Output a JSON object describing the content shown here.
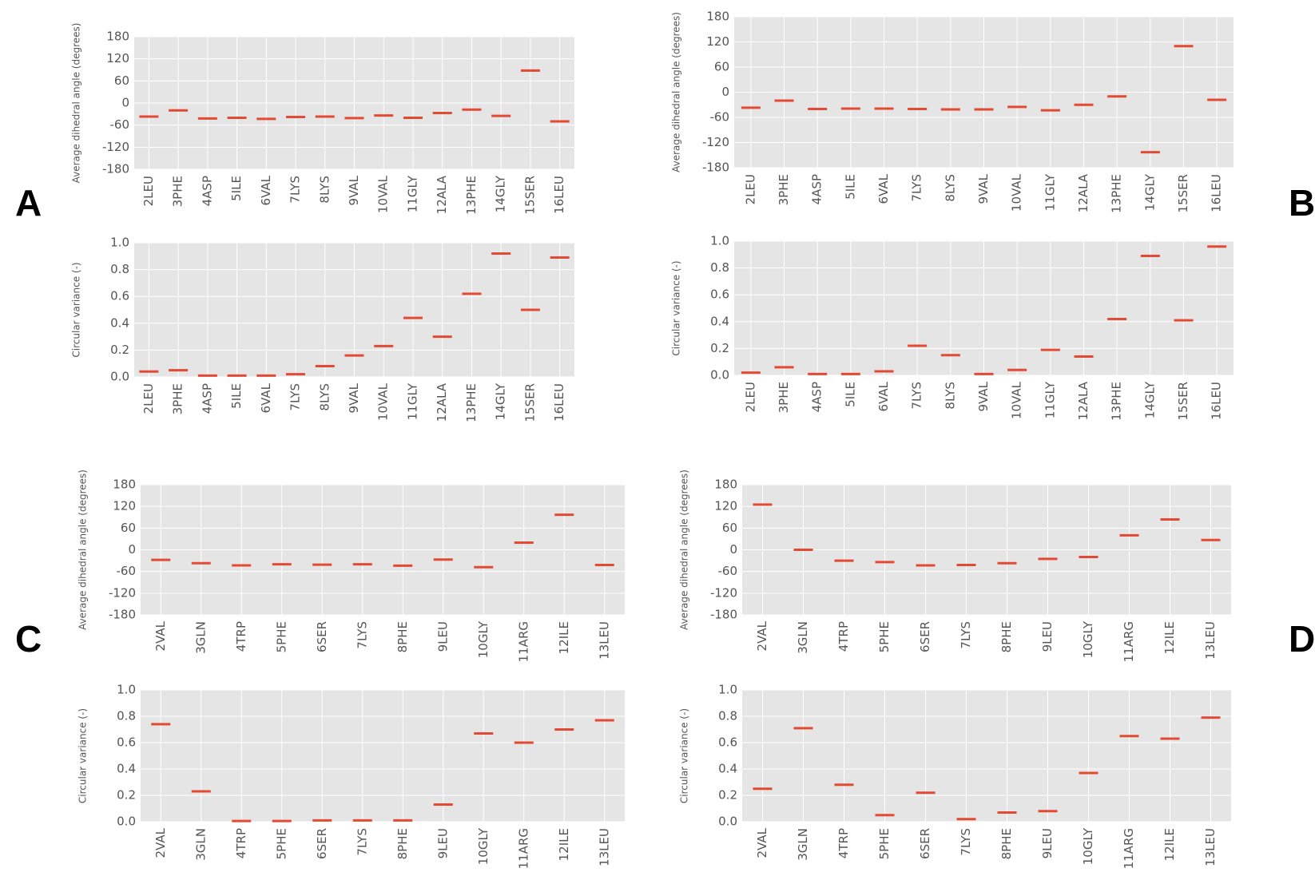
{
  "panel_labels": [
    "A",
    "B",
    "C",
    "D"
  ],
  "chart_data": [
    {
      "type": "scatter",
      "ylabel": "Average dihedral angle (degrees)",
      "color": "#e24a33",
      "grid": true,
      "categories": [
        "2LEU",
        "3PHE",
        "4ASP",
        "5ILE",
        "6VAL",
        "7LYS",
        "8LYS",
        "9VAL",
        "10VAL",
        "11GLY",
        "12ALA",
        "13PHE",
        "14GLY",
        "15SER",
        "16LEU"
      ],
      "values": [
        -37,
        -20,
        -42,
        -40,
        -43,
        -38,
        -37,
        -41,
        -34,
        -40,
        -27,
        -18,
        -35,
        88,
        -50
      ],
      "ylim": [
        -180,
        180
      ],
      "yticks": [
        -180,
        -120,
        -60,
        0,
        60,
        120,
        180
      ]
    },
    {
      "type": "scatter",
      "ylabel": "Circular variance (-)",
      "color": "#e24a33",
      "grid": true,
      "categories": [
        "2LEU",
        "3PHE",
        "4ASP",
        "5ILE",
        "6VAL",
        "7LYS",
        "8LYS",
        "9VAL",
        "10VAL",
        "11GLY",
        "12ALA",
        "13PHE",
        "14GLY",
        "15SER",
        "16LEU"
      ],
      "values": [
        0.04,
        0.05,
        0.01,
        0.01,
        0.01,
        0.02,
        0.08,
        0.16,
        0.23,
        0.44,
        0.3,
        0.62,
        0.92,
        0.5,
        0.89
      ],
      "ylim": [
        0,
        1
      ],
      "yticks": [
        {
          "value": 0,
          "label": "0.0"
        },
        0.2,
        0.4,
        0.6,
        0.8,
        {
          "value": 1,
          "label": "1.0"
        }
      ]
    },
    {
      "type": "scatter",
      "ylabel": "Average dihedral angle (degrees)",
      "color": "#e24a33",
      "grid": true,
      "categories": [
        "2LEU",
        "3PHE",
        "4ASP",
        "5ILE",
        "6VAL",
        "7LYS",
        "8LYS",
        "9VAL",
        "10VAL",
        "11GLY",
        "12ALA",
        "13PHE",
        "14GLY",
        "15SER",
        "16LEU"
      ],
      "values": [
        -37,
        -20,
        -40,
        -39,
        -39,
        -40,
        -41,
        -41,
        -35,
        -43,
        -30,
        -10,
        -143,
        110,
        -18
      ],
      "ylim": [
        -180,
        180
      ],
      "yticks": [
        -180,
        -120,
        -60,
        0,
        60,
        120,
        180
      ]
    },
    {
      "type": "scatter",
      "ylabel": "Circular variance (-)",
      "color": "#e24a33",
      "grid": true,
      "categories": [
        "2LEU",
        "3PHE",
        "4ASP",
        "5ILE",
        "6VAL",
        "7LYS",
        "8LYS",
        "9VAL",
        "10VAL",
        "11GLY",
        "12ALA",
        "13PHE",
        "14GLY",
        "15SER",
        "16LEU"
      ],
      "values": [
        0.02,
        0.06,
        0.01,
        0.01,
        0.03,
        0.22,
        0.15,
        0.01,
        0.04,
        0.19,
        0.14,
        0.42,
        0.89,
        0.41,
        0.96
      ],
      "ylim": [
        0,
        1
      ],
      "yticks": [
        {
          "value": 0,
          "label": "0.0"
        },
        0.2,
        0.4,
        0.6,
        0.8,
        {
          "value": 1,
          "label": "1.0"
        }
      ]
    },
    {
      "type": "scatter",
      "ylabel": "Average dihedral angle (degrees)",
      "color": "#e24a33",
      "grid": true,
      "categories": [
        "2VAL",
        "3GLN",
        "4TRP",
        "5PHE",
        "6SER",
        "7LYS",
        "8PHE",
        "9LEU",
        "10GLY",
        "11ARG",
        "12ILE",
        "13LEU"
      ],
      "values": [
        -28,
        -37,
        -43,
        -40,
        -41,
        -40,
        -44,
        -27,
        -48,
        20,
        97,
        -42
      ],
      "ylim": [
        -180,
        180
      ],
      "yticks": [
        -180,
        -120,
        -60,
        0,
        60,
        120,
        180
      ]
    },
    {
      "type": "scatter",
      "ylabel": "Circular variance (-)",
      "color": "#e24a33",
      "grid": true,
      "categories": [
        "2VAL",
        "3GLN",
        "4TRP",
        "5PHE",
        "6SER",
        "7LYS",
        "8PHE",
        "9LEU",
        "10GLY",
        "11ARG",
        "12ILE",
        "13LEU"
      ],
      "values": [
        0.74,
        0.23,
        0.005,
        0.005,
        0.01,
        0.01,
        0.01,
        0.13,
        0.67,
        0.6,
        0.7,
        0.77
      ],
      "ylim": [
        0,
        1
      ],
      "yticks": [
        {
          "value": 0,
          "label": "0.0"
        },
        0.2,
        0.4,
        0.6,
        0.8,
        {
          "value": 1,
          "label": "1.0"
        }
      ]
    },
    {
      "type": "scatter",
      "ylabel": "Average dihedral angle (degrees)",
      "color": "#e24a33",
      "grid": true,
      "categories": [
        "2VAL",
        "3GLN",
        "4TRP",
        "5PHE",
        "6SER",
        "7LYS",
        "8PHE",
        "9LEU",
        "10GLY",
        "11ARG",
        "12ILE",
        "13LEU"
      ],
      "values": [
        125,
        0,
        -30,
        -34,
        -43,
        -42,
        -37,
        -25,
        -20,
        40,
        84,
        27
      ],
      "ylim": [
        -180,
        180
      ],
      "yticks": [
        -180,
        -120,
        -60,
        0,
        60,
        120,
        180
      ]
    },
    {
      "type": "scatter",
      "ylabel": "Circular variance (-)",
      "color": "#e24a33",
      "grid": true,
      "categories": [
        "2VAL",
        "3GLN",
        "4TRP",
        "5PHE",
        "6SER",
        "7LYS",
        "8PHE",
        "9LEU",
        "10GLY",
        "11ARG",
        "12ILE",
        "13LEU"
      ],
      "values": [
        0.25,
        0.71,
        0.28,
        0.05,
        0.22,
        0.02,
        0.07,
        0.08,
        0.37,
        0.65,
        0.63,
        0.79
      ],
      "ylim": [
        0,
        1
      ],
      "yticks": [
        {
          "value": 0,
          "label": "0.0"
        },
        0.2,
        0.4,
        0.6,
        0.8,
        {
          "value": 1,
          "label": "1.0"
        }
      ]
    }
  ]
}
